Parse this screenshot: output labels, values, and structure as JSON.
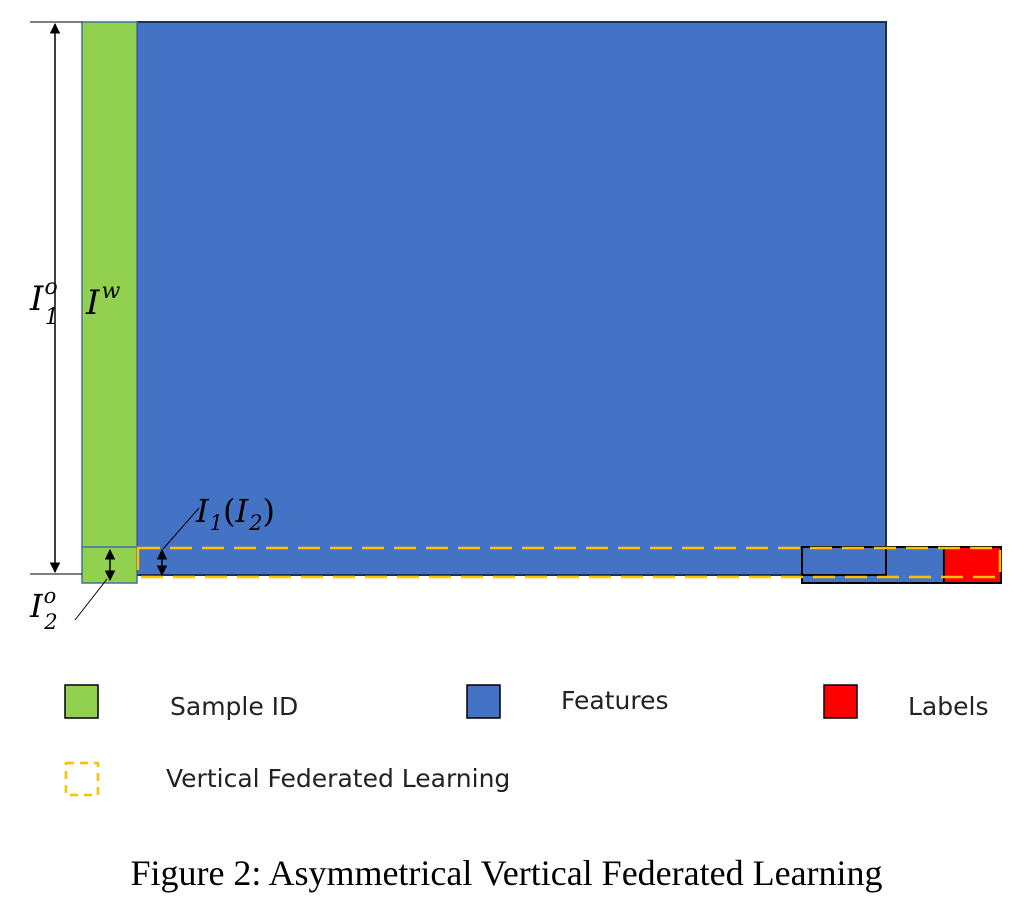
{
  "diagram": {
    "labels": {
      "i1o": {
        "main": "I",
        "sup": "o",
        "sub": "1"
      },
      "iw": {
        "main": "I",
        "sup": "w"
      },
      "i1i2": {
        "main": "I",
        "sub": "1",
        "paren_main": "I",
        "paren_sub": "2"
      },
      "i2o": {
        "main": "I",
        "sup": "o",
        "sub": "2"
      }
    },
    "colors": {
      "sample_id": "#92D050",
      "features": "#4472C4",
      "labels": "#FF0000",
      "vfl_border": "#FFC000"
    }
  },
  "legend": {
    "sample_id": "Sample ID",
    "features": "Features",
    "labels": "Labels",
    "vfl": "Vertical Federated Learning"
  },
  "caption": "Figure 2: Asymmetrical Vertical Federated Learning"
}
